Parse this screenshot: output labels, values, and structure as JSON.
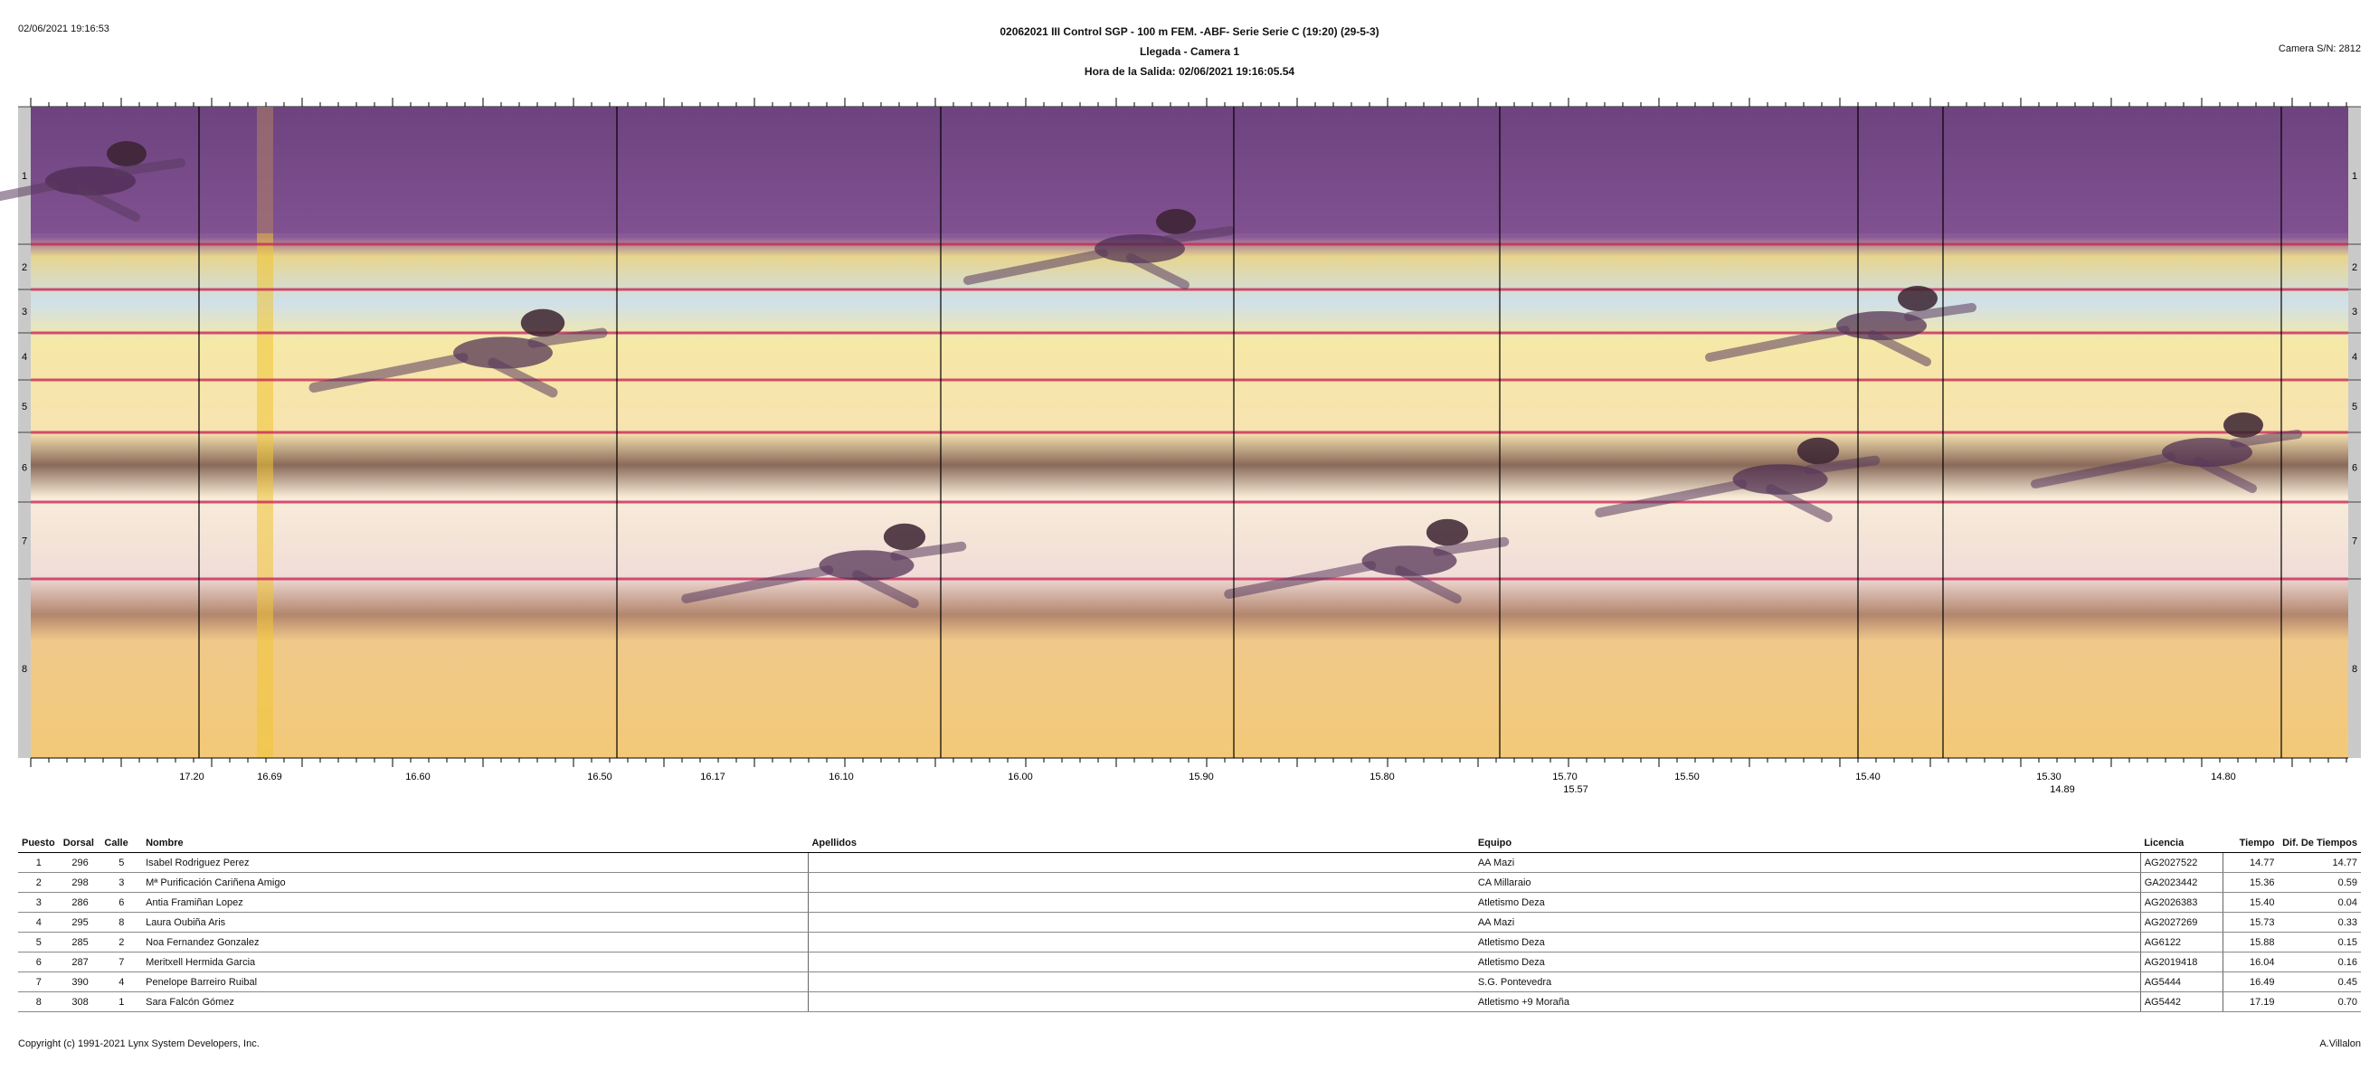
{
  "header": {
    "printed_at": "02/06/2021 19:16:53",
    "title": "02062021 III Control SGP - 100 m FEM. -ABF- Serie Serie C (19:20) (29-5-3)",
    "subtitle": "Llegada - Camera 1",
    "start_time": "Hora de la Salida: 02/06/2021 19:16:05.54",
    "camera": "Camera S/N: 2812"
  },
  "finish_image": {
    "lane_labels": [
      "1",
      "2",
      "3",
      "4",
      "5",
      "6",
      "7",
      "8"
    ],
    "time_labels": [
      "17.20",
      "16.69",
      "16.60",
      "16.50",
      "16.17",
      "16.10",
      "16.00",
      "15.90",
      "15.80",
      "15.70",
      "15.57",
      "15.50",
      "15.40",
      "15.30",
      "14.89",
      "14.80"
    ],
    "colors": {
      "purple": "#7a4a8c",
      "yellow": "#f4dc7a",
      "pale": "#f6ecd6",
      "lane_line": "#c8285a"
    }
  },
  "results": {
    "columns": [
      "Puesto",
      "Dorsal",
      "Calle",
      "Nombre",
      "Apellidos",
      "Equipo",
      "Licencia",
      "Tiempo",
      "Dif. De Tiempos"
    ],
    "rows": [
      [
        "1",
        "296",
        "5",
        "Isabel Rodriguez Perez",
        "",
        "AA Mazi",
        "AG2027522",
        "14.77",
        "14.77"
      ],
      [
        "2",
        "298",
        "3",
        "Mª Purificación Cariñena Amigo",
        "",
        "CA Millaraio",
        "GA2023442",
        "15.36",
        "0.59"
      ],
      [
        "3",
        "286",
        "6",
        "Antia Framiñan Lopez",
        "",
        "Atletismo Deza",
        "AG2026383",
        "15.40",
        "0.04"
      ],
      [
        "4",
        "295",
        "8",
        "Laura Oubiña Aris",
        "",
        "AA Mazi",
        "AG2027269",
        "15.73",
        "0.33"
      ],
      [
        "5",
        "285",
        "2",
        "Noa Fernandez Gonzalez",
        "",
        "Atletismo Deza",
        "AG6122",
        "15.88",
        "0.15"
      ],
      [
        "6",
        "287",
        "7",
        "Meritxell Hermida Garcia",
        "",
        "Atletismo Deza",
        "AG2019418",
        "16.04",
        "0.16"
      ],
      [
        "7",
        "390",
        "4",
        "Penelope Barreiro Ruibal",
        "",
        "S.G. Pontevedra",
        "AG5444",
        "16.49",
        "0.45"
      ],
      [
        "8",
        "308",
        "1",
        "Sara Falcón Gómez",
        "",
        "Atletismo +9 Moraña",
        "AG5442",
        "17.19",
        "0.70"
      ]
    ]
  },
  "footer": {
    "copyright": "Copyright (c) 1991-2021 Lynx System Developers, Inc.",
    "operator": "A.Villalon"
  }
}
